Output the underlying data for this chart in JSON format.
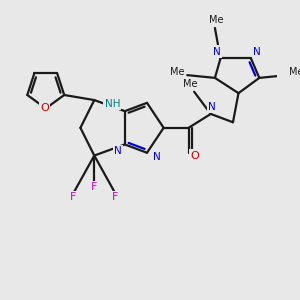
{
  "bg_color": "#e8e8e8",
  "bond_color": "#1a1a1a",
  "n_color": "#0000cc",
  "o_color": "#cc0000",
  "f_color": "#cc00cc",
  "nh_color": "#008080",
  "lw": 1.6,
  "figsize": [
    3.0,
    3.0
  ],
  "dpi": 100,
  "xlim": [
    0,
    10
  ],
  "ylim": [
    0,
    10
  ]
}
